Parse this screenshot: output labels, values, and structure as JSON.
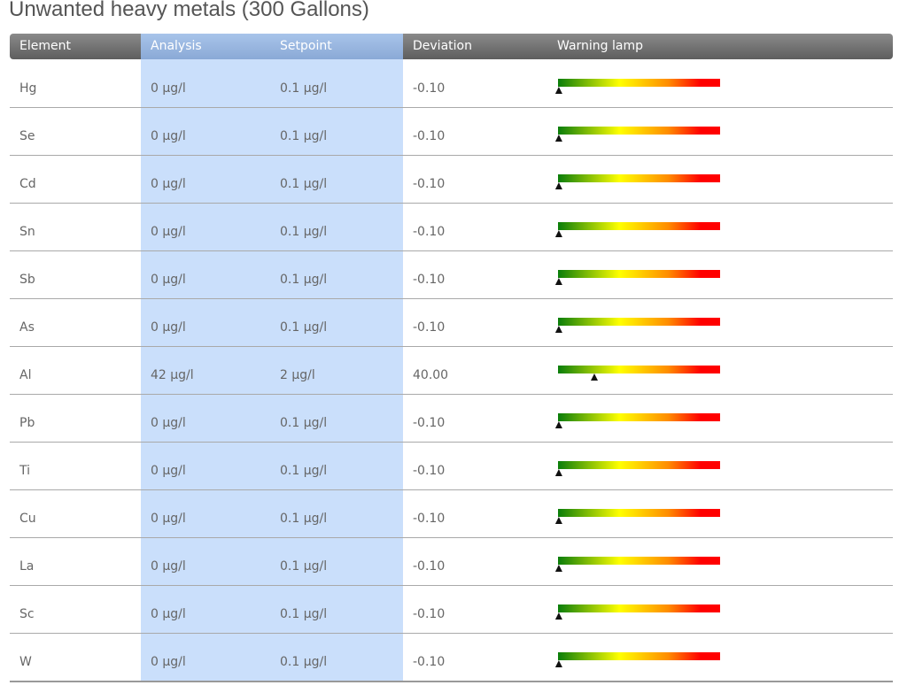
{
  "title": "Unwanted heavy metals (300 Gallons)",
  "table": {
    "columns": [
      "Element",
      "Analysis",
      "Setpoint",
      "Deviation",
      "Warning lamp"
    ],
    "rows": [
      [
        "Hg",
        "0 µg/l",
        "0.1 µg/l",
        "-0.10"
      ],
      [
        "Se",
        "0 µg/l",
        "0.1 µg/l",
        "-0.10"
      ],
      [
        "Cd",
        "0 µg/l",
        "0.1 µg/l",
        "-0.10"
      ],
      [
        "Sn",
        "0 µg/l",
        "0.1 µg/l",
        "-0.10"
      ],
      [
        "Sb",
        "0 µg/l",
        "0.1 µg/l",
        "-0.10"
      ],
      [
        "As",
        "0 µg/l",
        "0.1 µg/l",
        "-0.10"
      ],
      [
        "Al",
        "42 µg/l",
        "2 µg/l",
        "40.00"
      ],
      [
        "Pb",
        "0 µg/l",
        "0.1 µg/l",
        "-0.10"
      ],
      [
        "Ti",
        "0 µg/l",
        "0.1 µg/l",
        "-0.10"
      ],
      [
        "Cu",
        "0 µg/l",
        "0.1 µg/l",
        "-0.10"
      ],
      [
        "La",
        "0 µg/l",
        "0.1 µg/l",
        "-0.10"
      ],
      [
        "Sc",
        "0 µg/l",
        "0.1 µg/l",
        "-0.10"
      ],
      [
        "W",
        "0 µg/l",
        "0.1 µg/l",
        "-0.10"
      ]
    ]
  }
}
